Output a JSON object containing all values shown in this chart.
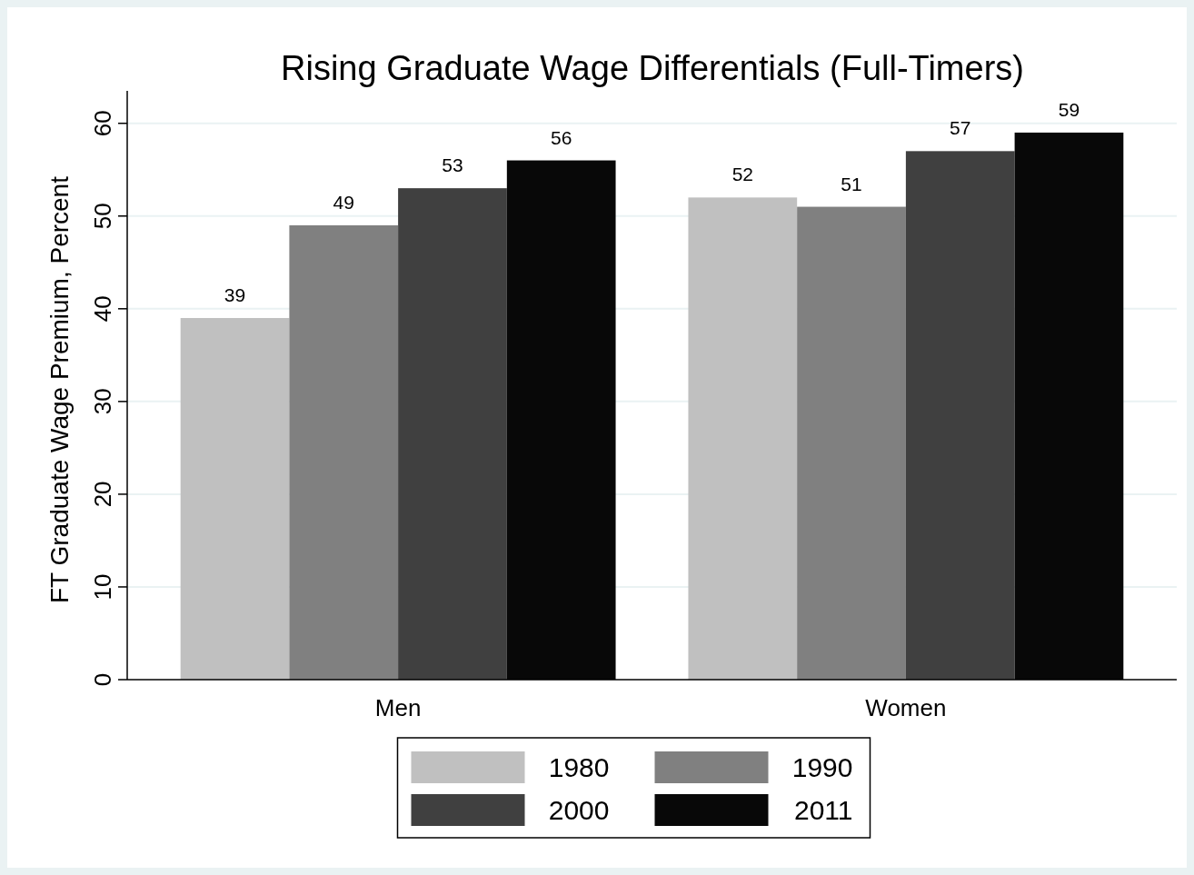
{
  "chart_data": {
    "type": "bar",
    "title": "Rising Graduate Wage Differentials (Full-Timers)",
    "ylabel": "FT Graduate Wage Premium, Percent",
    "categories": [
      "Men",
      "Women"
    ],
    "series": [
      {
        "name": "1980",
        "color": "#c0c0c0",
        "values": [
          39,
          52
        ]
      },
      {
        "name": "1990",
        "color": "#808080",
        "values": [
          49,
          51
        ]
      },
      {
        "name": "2000",
        "color": "#404040",
        "values": [
          53,
          57
        ]
      },
      {
        "name": "2011",
        "color": "#080808",
        "values": [
          56,
          59
        ]
      }
    ],
    "ylim": [
      0,
      63.5
    ],
    "yticks": [
      0,
      10,
      20,
      30,
      40,
      50,
      60
    ],
    "grid": "y",
    "legend": "bottom",
    "data_labels": true
  }
}
